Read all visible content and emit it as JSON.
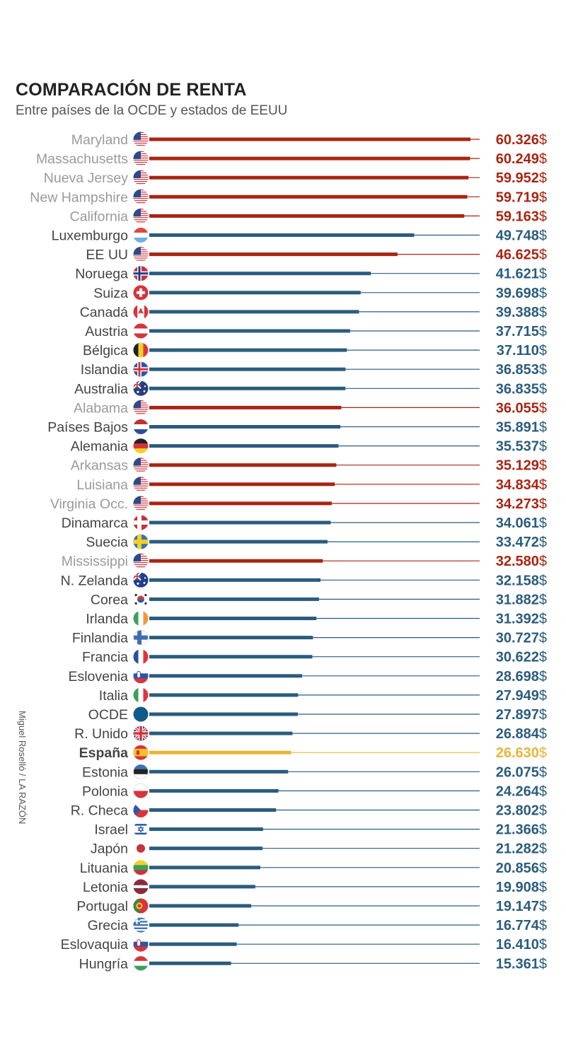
{
  "colors": {
    "country": "#2b5c7e",
    "us": "#a82512",
    "spain": "#e8b53a",
    "us_label": "#9a9a9a",
    "country_label": "#444444"
  },
  "header": {
    "title": "COMPARACIÓN DE RENTA",
    "subtitle": "Entre países de la OCDE y estados de EEUU"
  },
  "credit": "Miguel Roselló / LA RAZÓN",
  "chart_data": {
    "type": "bar",
    "orientation": "horizontal",
    "title": "COMPARACIÓN DE RENTA",
    "subtitle": "Entre países de la OCDE y estados de EEUU",
    "unit": "$",
    "xlim": [
      0,
      60326
    ],
    "rows": [
      {
        "label": "Maryland",
        "value": 60326,
        "display": "60.326",
        "kind": "us",
        "flag": "us-flag-icon"
      },
      {
        "label": "Massachusetts",
        "value": 60249,
        "display": "60.249",
        "kind": "us",
        "flag": "us-flag-icon"
      },
      {
        "label": "Nueva Jersey",
        "value": 59952,
        "display": "59.952",
        "kind": "us",
        "flag": "us-flag-icon"
      },
      {
        "label": "New Hampshire",
        "value": 59719,
        "display": "59.719",
        "kind": "us",
        "flag": "us-flag-icon"
      },
      {
        "label": "California",
        "value": 59163,
        "display": "59.163",
        "kind": "us",
        "flag": "us-flag-icon"
      },
      {
        "label": "Luxemburgo",
        "value": 49748,
        "display": "49.748",
        "kind": "country",
        "flag": "luxembourg-flag-icon"
      },
      {
        "label": "EE UU",
        "value": 46625,
        "display": "46.625",
        "kind": "usa",
        "flag": "us-flag-icon"
      },
      {
        "label": "Noruega",
        "value": 41621,
        "display": "41.621",
        "kind": "country",
        "flag": "norway-flag-icon"
      },
      {
        "label": "Suiza",
        "value": 39698,
        "display": "39.698",
        "kind": "country",
        "flag": "switzerland-flag-icon"
      },
      {
        "label": "Canadá",
        "value": 39388,
        "display": "39.388",
        "kind": "country",
        "flag": "canada-flag-icon"
      },
      {
        "label": "Austria",
        "value": 37715,
        "display": "37.715",
        "kind": "country",
        "flag": "austria-flag-icon"
      },
      {
        "label": "Bélgica",
        "value": 37110,
        "display": "37.110",
        "kind": "country",
        "flag": "belgium-flag-icon"
      },
      {
        "label": "Islandia",
        "value": 36853,
        "display": "36.853",
        "kind": "country",
        "flag": "iceland-flag-icon"
      },
      {
        "label": "Australia",
        "value": 36835,
        "display": "36.835",
        "kind": "country",
        "flag": "australia-flag-icon"
      },
      {
        "label": "Alabama",
        "value": 36055,
        "display": "36.055",
        "kind": "us",
        "flag": "us-flag-icon"
      },
      {
        "label": "Países Bajos",
        "value": 35891,
        "display": "35.891",
        "kind": "country",
        "flag": "netherlands-flag-icon"
      },
      {
        "label": "Alemania",
        "value": 35537,
        "display": "35.537",
        "kind": "country",
        "flag": "germany-flag-icon"
      },
      {
        "label": "Arkansas",
        "value": 35129,
        "display": "35.129",
        "kind": "us",
        "flag": "us-flag-icon"
      },
      {
        "label": "Luisiana",
        "value": 34834,
        "display": "34.834",
        "kind": "us",
        "flag": "us-flag-icon"
      },
      {
        "label": "Virginia Occ.",
        "value": 34273,
        "display": "34.273",
        "kind": "us",
        "flag": "us-flag-icon"
      },
      {
        "label": "Dinamarca",
        "value": 34061,
        "display": "34.061",
        "kind": "country",
        "flag": "denmark-flag-icon"
      },
      {
        "label": "Suecia",
        "value": 33472,
        "display": "33.472",
        "kind": "country",
        "flag": "sweden-flag-icon"
      },
      {
        "label": "Mississippi",
        "value": 32580,
        "display": "32.580",
        "kind": "us",
        "flag": "us-flag-icon"
      },
      {
        "label": "N. Zelanda",
        "value": 32158,
        "display": "32.158",
        "kind": "country",
        "flag": "new-zealand-flag-icon"
      },
      {
        "label": "Corea",
        "value": 31882,
        "display": "31.882",
        "kind": "country",
        "flag": "korea-flag-icon"
      },
      {
        "label": "Irlanda",
        "value": 31392,
        "display": "31.392",
        "kind": "country",
        "flag": "ireland-flag-icon"
      },
      {
        "label": "Finlandia",
        "value": 30727,
        "display": "30.727",
        "kind": "country",
        "flag": "finland-flag-icon"
      },
      {
        "label": "Francia",
        "value": 30622,
        "display": "30.622",
        "kind": "country",
        "flag": "france-flag-icon"
      },
      {
        "label": "Eslovenia",
        "value": 28698,
        "display": "28.698",
        "kind": "country",
        "flag": "slovenia-flag-icon"
      },
      {
        "label": "Italia",
        "value": 27949,
        "display": "27.949",
        "kind": "country",
        "flag": "italy-flag-icon"
      },
      {
        "label": "OCDE",
        "value": 27897,
        "display": "27.897",
        "kind": "country",
        "flag": "oecd-circle-icon"
      },
      {
        "label": "R. Unido",
        "value": 26884,
        "display": "26.884",
        "kind": "country",
        "flag": "uk-flag-icon"
      },
      {
        "label": "España",
        "value": 26630,
        "display": "26.630",
        "kind": "spain",
        "flag": "spain-flag-icon"
      },
      {
        "label": "Estonia",
        "value": 26075,
        "display": "26.075",
        "kind": "country",
        "flag": "estonia-flag-icon"
      },
      {
        "label": "Polonia",
        "value": 24264,
        "display": "24.264",
        "kind": "country",
        "flag": "poland-flag-icon"
      },
      {
        "label": "R. Checa",
        "value": 23802,
        "display": "23.802",
        "kind": "country",
        "flag": "czech-flag-icon"
      },
      {
        "label": "Israel",
        "value": 21366,
        "display": "21.366",
        "kind": "country",
        "flag": "israel-flag-icon"
      },
      {
        "label": "Japón",
        "value": 21282,
        "display": "21.282",
        "kind": "country",
        "flag": "japan-flag-icon"
      },
      {
        "label": "Lituania",
        "value": 20856,
        "display": "20.856",
        "kind": "country",
        "flag": "lithuania-flag-icon"
      },
      {
        "label": "Letonia",
        "value": 19908,
        "display": "19.908",
        "kind": "country",
        "flag": "latvia-flag-icon"
      },
      {
        "label": "Portugal",
        "value": 19147,
        "display": "19.147",
        "kind": "country",
        "flag": "portugal-flag-icon"
      },
      {
        "label": "Grecia",
        "value": 16774,
        "display": "16.774",
        "kind": "country",
        "flag": "greece-flag-icon"
      },
      {
        "label": "Eslovaquia",
        "value": 16410,
        "display": "16.410",
        "kind": "country",
        "flag": "slovakia-flag-icon"
      },
      {
        "label": "Hungría",
        "value": 15361,
        "display": "15.361",
        "kind": "country",
        "flag": "hungary-flag-icon"
      }
    ]
  }
}
